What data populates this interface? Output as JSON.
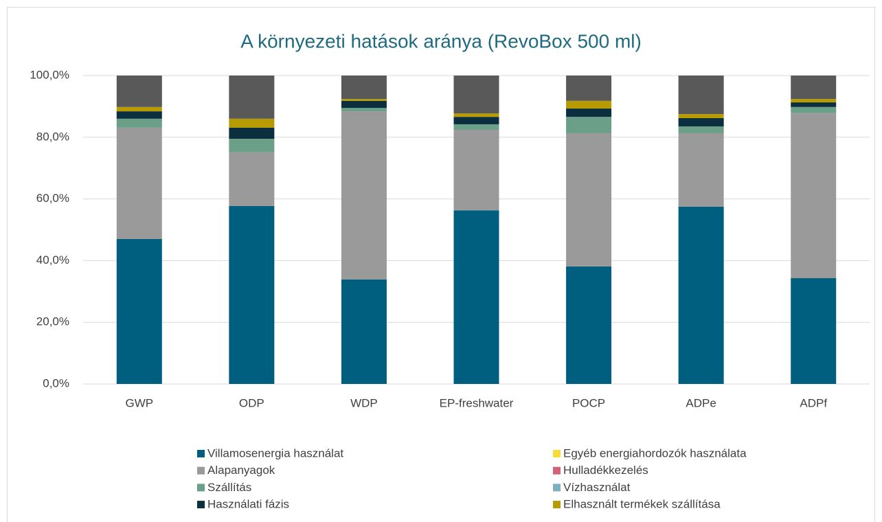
{
  "chart_data": {
    "type": "bar",
    "stacked": true,
    "title": "A környezeti hatások aránya (RevoBox 500 ml)",
    "categories": [
      "GWP",
      "ODP",
      "WDP",
      "EP-freshwater",
      "POCP",
      "ADPe",
      "ADPf"
    ],
    "ylim": [
      0,
      100
    ],
    "yticks": [
      {
        "value": 0,
        "label": "0,0%"
      },
      {
        "value": 20,
        "label": "20,0%"
      },
      {
        "value": 40,
        "label": "40,0%"
      },
      {
        "value": 60,
        "label": "60,0%"
      },
      {
        "value": 80,
        "label": "80,0%"
      },
      {
        "value": 100,
        "label": "100,0%"
      }
    ],
    "grid": true,
    "legend": "bottom",
    "series": [
      {
        "name": "Villamosenergia használat",
        "color": "#005f7f",
        "values": [
          47.0,
          57.7,
          33.9,
          56.3,
          38.1,
          57.5,
          34.3
        ]
      },
      {
        "name": "Alapanyagok",
        "color": "#9a9a9a",
        "values": [
          36.1,
          17.4,
          54.5,
          26.1,
          43.2,
          23.8,
          53.5
        ]
      },
      {
        "name": "Szállítás",
        "color": "#6b9f87",
        "values": [
          2.9,
          4.4,
          1.1,
          1.8,
          5.3,
          2.2,
          2.0
        ]
      },
      {
        "name": "Használati fázis",
        "color": "#0c2f40",
        "values": [
          2.4,
          3.6,
          2.3,
          2.4,
          2.7,
          2.7,
          1.5
        ]
      },
      {
        "name": "Egyéb energiahordozók használata",
        "color": "#f7dd3b",
        "values": [
          0,
          0,
          0,
          0,
          0,
          0,
          0
        ]
      },
      {
        "name": "Hulladékkezelés",
        "color": "#d0627a",
        "values": [
          0,
          0,
          0,
          0,
          0,
          0,
          0
        ]
      },
      {
        "name": "Vízhasználat",
        "color": "#7fb0c0",
        "values": [
          0,
          0,
          0,
          0,
          0,
          0,
          0
        ]
      },
      {
        "name": "Elhasznált termékek szállítása",
        "color": "#b89b00",
        "values": [
          1.4,
          2.9,
          0.6,
          1.1,
          2.5,
          1.3,
          1.1
        ]
      },
      {
        "color": "#595959",
        "values": [
          10.2,
          14.0,
          7.6,
          12.3,
          8.2,
          12.5,
          7.6
        ]
      }
    ]
  }
}
